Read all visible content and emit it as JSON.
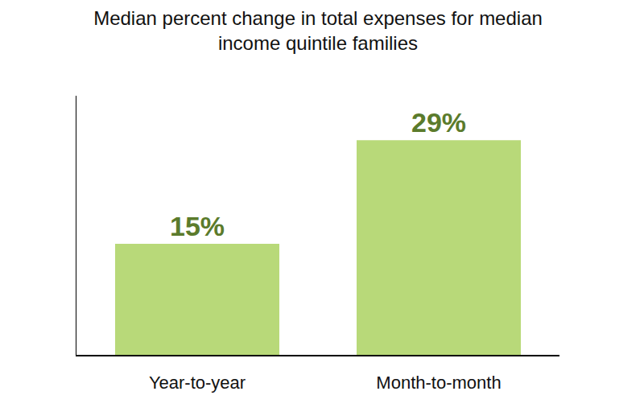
{
  "chart_data": {
    "type": "bar",
    "title": "Median percent change in total expenses for median\nincome quintile families",
    "categories": [
      "Year-to-year",
      "Month-to-month"
    ],
    "values": [
      15,
      29
    ],
    "value_labels": [
      "15%",
      "29%"
    ],
    "color": "#b8d979",
    "ylim": [
      0,
      35
    ],
    "data_labels": true,
    "tick_labels": "x",
    "grid": false
  }
}
